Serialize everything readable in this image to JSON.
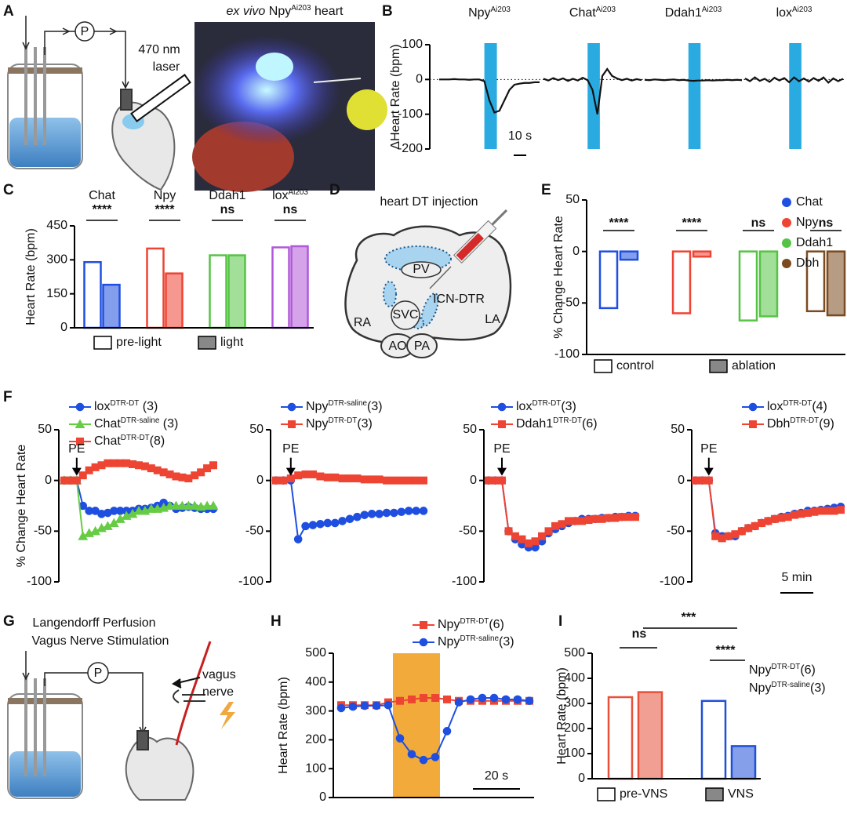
{
  "panel_labels": [
    "A",
    "B",
    "C",
    "D",
    "E",
    "F",
    "G",
    "H",
    "I"
  ],
  "panel_a": {
    "pump": "P",
    "laser_line1": "470 nm",
    "laser_line2": "laser",
    "photo_title": {
      "pre": "ex vivo",
      "text": " Npy",
      "sup": "Ai203",
      "after": " heart"
    }
  },
  "panel_d": {
    "title": "heart DT injection",
    "labels": [
      "PV",
      "ICN-DTR",
      "SVC",
      "RA",
      "LA",
      "AO",
      "PA"
    ]
  },
  "panel_g": {
    "title_line1": "Langendorff Perfusion",
    "title_line2": "Vagus Nerve Stimulation",
    "pump": "P",
    "nerve_line1": "vagus",
    "nerve_line2": "nerve"
  },
  "chart_data": [
    {
      "type": "trace",
      "ylabel": "ΔHeart Rate (bpm)",
      "ylim": [
        -200,
        100
      ],
      "yticks": [
        -200,
        -100,
        0,
        100
      ],
      "xlim": [
        0,
        80
      ],
      "x": [
        0,
        4,
        8,
        12,
        16,
        20,
        24,
        28,
        32,
        36,
        40,
        44,
        48,
        52,
        56,
        60,
        64,
        68,
        72,
        76,
        80
      ],
      "stim": [
        36,
        46
      ],
      "stim_color": "#29abe2",
      "scale_bar": {
        "value": 10,
        "label": "10 s"
      },
      "series": [
        {
          "name": {
            "text": "Npy",
            "sup": "Ai203"
          },
          "color": "#111",
          "values": [
            0,
            0,
            0,
            1,
            0,
            0,
            -1,
            0,
            0,
            -5,
            -60,
            -95,
            -90,
            -60,
            -30,
            -15,
            -12,
            -10,
            -10,
            -8,
            -8
          ]
        },
        {
          "name": {
            "text": "Chat",
            "sup": "Ai203"
          },
          "color": "#111",
          "values": [
            2,
            -3,
            4,
            -2,
            3,
            -4,
            2,
            -3,
            5,
            -2,
            -30,
            -100,
            10,
            30,
            10,
            3,
            -2,
            2,
            -3,
            1,
            -2
          ]
        },
        {
          "name": {
            "text": "Ddah1",
            "sup": "Ai203"
          },
          "color": "#111",
          "values": [
            -1,
            -2,
            0,
            -1,
            -2,
            -1,
            0,
            -2,
            -1,
            -3,
            -4,
            -3,
            -3,
            -2,
            -3,
            -2,
            -2,
            -1,
            -2,
            -1,
            -2
          ]
        },
        {
          "name": {
            "text": "lox",
            "sup": "Ai203"
          },
          "color": "#111",
          "values": [
            3,
            -5,
            6,
            -4,
            2,
            -7,
            5,
            -3,
            4,
            -8,
            6,
            -5,
            3,
            -6,
            4,
            -4,
            6,
            -9,
            3,
            -5,
            2
          ]
        }
      ]
    },
    {
      "type": "paired_bar",
      "ylabel": "Heart Rate (bpm)",
      "ylim": [
        0,
        450
      ],
      "yticks": [
        0,
        150,
        300,
        450
      ],
      "categories": [
        "Chat",
        "Npy",
        "Ddah1",
        {
          "text": "lox",
          "sup": "Ai203"
        }
      ],
      "category_colors": [
        "#1f4fe0",
        "#ee4433",
        "#55c444",
        "#b058d8"
      ],
      "annotations": [
        "****",
        "****",
        "ns",
        "ns"
      ],
      "series": [
        {
          "name": "pre-light",
          "values": [
            290,
            350,
            320,
            355
          ]
        },
        {
          "name": "light",
          "values": [
            190,
            240,
            320,
            360
          ]
        }
      ]
    },
    {
      "type": "paired_bar",
      "ylabel": "% Change Heart Rate",
      "ylim": [
        -100,
        50
      ],
      "yticks": [
        -100,
        -50,
        0,
        50
      ],
      "categories": [
        "Chat",
        "Npy",
        "Ddah1",
        "Dbh"
      ],
      "category_colors": [
        "#1f4fe0",
        "#ee4433",
        "#55c444",
        "#7b4a1f"
      ],
      "annotations": [
        "****",
        "****",
        "ns",
        "ns"
      ],
      "series": [
        {
          "name": "control",
          "values": [
            -55,
            -60,
            -67,
            -58
          ]
        },
        {
          "name": "ablation",
          "values": [
            -8,
            -5,
            -63,
            -62
          ]
        }
      ]
    },
    {
      "type": "line",
      "ylabel": "% Change Heart Rate",
      "ylim": [
        -100,
        50
      ],
      "yticks": [
        -100,
        -50,
        0,
        50
      ],
      "xlim": [
        -2,
        22
      ],
      "x": [
        -2,
        -1,
        0,
        1,
        2,
        3,
        4,
        5,
        6,
        7,
        8,
        9,
        10,
        11,
        12,
        13,
        14,
        15,
        16,
        17,
        18,
        19,
        20,
        21,
        22
      ],
      "pe": {
        "label": "PE",
        "x": 0
      },
      "series": [
        {
          "name": {
            "text": "lox",
            "sup": "DTR-DT",
            "after": " (3)"
          },
          "color": "#1f4fe0",
          "marker": "circle",
          "values": [
            0,
            0,
            0,
            -25,
            -30,
            -30,
            -33,
            -32,
            -30,
            -30,
            -30,
            -30,
            -28,
            -28,
            -27,
            -25,
            -22,
            -25,
            -28,
            -27,
            -26,
            -27,
            -28,
            -28,
            -28
          ]
        },
        {
          "name": {
            "text": "Chat",
            "sup": "DTR-saline",
            "after": " (3)"
          },
          "color": "#66cc44",
          "marker": "triangle",
          "values": [
            0,
            0,
            0,
            -55,
            -52,
            -50,
            -47,
            -45,
            -42,
            -38,
            -35,
            -33,
            -30,
            -30,
            -28,
            -28,
            -27,
            -25,
            -25,
            -25,
            -25,
            -25,
            -26,
            -25,
            -25
          ]
        },
        {
          "name": {
            "text": "Chat",
            "sup": "DTR-DT",
            "after": "(8)"
          },
          "color": "#ee4433",
          "marker": "square",
          "values": [
            0,
            0,
            0,
            5,
            10,
            13,
            15,
            17,
            17,
            17,
            17,
            16,
            15,
            14,
            12,
            10,
            8,
            6,
            4,
            3,
            2,
            5,
            8,
            12,
            15
          ]
        }
      ]
    },
    {
      "type": "line",
      "ylim": [
        -100,
        50
      ],
      "yticks": [
        -100,
        -50,
        0,
        50
      ],
      "xlim": [
        -2,
        18
      ],
      "x": [
        -2,
        -1,
        0,
        1,
        2,
        3,
        4,
        5,
        6,
        7,
        8,
        9,
        10,
        11,
        12,
        13,
        14,
        15,
        16,
        17,
        18
      ],
      "pe": {
        "label": "PE",
        "x": 0
      },
      "series": [
        {
          "name": {
            "text": "Npy",
            "sup": "DTR-saline",
            "after": "(3)"
          },
          "color": "#1f4fe0",
          "marker": "circle",
          "values": [
            0,
            0,
            0,
            -58,
            -45,
            -44,
            -43,
            -42,
            -42,
            -40,
            -38,
            -36,
            -34,
            -33,
            -33,
            -32,
            -32,
            -31,
            -30,
            -30,
            -30
          ]
        },
        {
          "name": {
            "text": "Npy",
            "sup": "DTR-DT",
            "after": "(3)"
          },
          "color": "#ee4433",
          "marker": "square",
          "values": [
            0,
            0,
            2,
            5,
            6,
            6,
            4,
            3,
            3,
            2,
            2,
            2,
            1,
            1,
            1,
            0,
            0,
            0,
            0,
            0,
            0
          ]
        }
      ]
    },
    {
      "type": "line",
      "ylim": [
        -100,
        50
      ],
      "yticks": [
        -100,
        -50,
        0,
        50
      ],
      "xlim": [
        -2,
        20
      ],
      "x": [
        -2,
        -1,
        0,
        1,
        2,
        3,
        4,
        5,
        6,
        7,
        8,
        9,
        10,
        11,
        12,
        13,
        14,
        15,
        16,
        17,
        18,
        19,
        20
      ],
      "pe": {
        "label": "PE",
        "x": 0
      },
      "series": [
        {
          "name": {
            "text": "lox",
            "sup": "DTR-DT",
            "after": "(3)"
          },
          "color": "#1f4fe0",
          "marker": "circle",
          "values": [
            0,
            0,
            0,
            -50,
            -58,
            -63,
            -66,
            -66,
            -60,
            -52,
            -48,
            -45,
            -42,
            -40,
            -38,
            -38,
            -38,
            -37,
            -37,
            -36,
            -36,
            -35,
            -35
          ]
        },
        {
          "name": {
            "text": "Ddah1",
            "sup": "DTR-DT",
            "after": "(6)"
          },
          "color": "#ee4433",
          "marker": "square",
          "values": [
            0,
            0,
            0,
            -50,
            -55,
            -58,
            -62,
            -60,
            -55,
            -50,
            -45,
            -43,
            -40,
            -40,
            -40,
            -39,
            -38,
            -38,
            -37,
            -37,
            -36,
            -36,
            -36
          ]
        }
      ]
    },
    {
      "type": "line",
      "ylim": [
        -100,
        50
      ],
      "yticks": [
        -100,
        -50,
        0,
        50
      ],
      "xlim": [
        -2,
        20
      ],
      "x": [
        -2,
        -1,
        0,
        1,
        2,
        3,
        4,
        5,
        6,
        7,
        8,
        9,
        10,
        11,
        12,
        13,
        14,
        15,
        16,
        17,
        18,
        19,
        20
      ],
      "pe": {
        "label": "PE",
        "x": 0
      },
      "scale_bar": {
        "value": 5,
        "label": "5 min"
      },
      "series": [
        {
          "name": {
            "text": "lox",
            "sup": "DTR-DT",
            "after": "(4)"
          },
          "color": "#1f4fe0",
          "marker": "circle",
          "values": [
            0,
            0,
            0,
            -52,
            -55,
            -55,
            -55,
            -50,
            -47,
            -45,
            -42,
            -40,
            -38,
            -36,
            -35,
            -33,
            -32,
            -30,
            -30,
            -29,
            -28,
            -27,
            -26
          ]
        },
        {
          "name": {
            "text": "Dbh",
            "sup": "DTR-DT",
            "after": "(9)"
          },
          "color": "#ee4433",
          "marker": "square",
          "values": [
            0,
            0,
            0,
            -55,
            -57,
            -55,
            -53,
            -50,
            -47,
            -45,
            -42,
            -40,
            -38,
            -37,
            -36,
            -34,
            -33,
            -32,
            -31,
            -30,
            -30,
            -30,
            -29
          ]
        }
      ]
    },
    {
      "type": "line",
      "ylabel": "Heart Rate (bpm)",
      "ylim": [
        0,
        500
      ],
      "yticks": [
        0,
        100,
        200,
        300,
        400,
        500
      ],
      "xlim": [
        0,
        80
      ],
      "x": [
        0,
        5,
        10,
        15,
        20,
        25,
        30,
        35,
        40,
        45,
        50,
        55,
        60,
        65,
        70,
        75,
        80
      ],
      "stim": [
        22,
        42
      ],
      "stim_color": "#f2ab3a",
      "scale_bar": {
        "value": 20,
        "label": "20 s"
      },
      "series": [
        {
          "name": {
            "text": "Npy",
            "sup": "DTR-DT",
            "after": "(6)"
          },
          "color": "#ee4433",
          "marker": "square",
          "values": [
            320,
            320,
            320,
            320,
            330,
            335,
            340,
            345,
            345,
            340,
            335,
            335,
            335,
            335,
            335,
            335,
            335
          ]
        },
        {
          "name": {
            "text": "Npy",
            "sup": "DTR-saline",
            "after": "(3)"
          },
          "color": "#1f4fe0",
          "marker": "circle",
          "values": [
            310,
            315,
            318,
            318,
            320,
            205,
            150,
            130,
            140,
            230,
            330,
            340,
            345,
            345,
            340,
            340,
            335
          ]
        }
      ]
    },
    {
      "type": "paired_bar",
      "ylabel": "Heart Rate (bpm)",
      "ylim": [
        0,
        500
      ],
      "yticks": [
        0,
        100,
        200,
        300,
        400,
        500
      ],
      "categories": [
        {
          "text": "Npy",
          "sup": "DTR-DT",
          "after": "(6)"
        },
        {
          "text": "Npy",
          "sup": "DTR-saline",
          "after": "(3)"
        }
      ],
      "category_colors": [
        "#e8503a",
        "#2050d8"
      ],
      "annotations": [
        "ns",
        "***",
        "****"
      ],
      "series": [
        {
          "name": "pre-VNS",
          "values": [
            325,
            310
          ]
        },
        {
          "name": "VNS",
          "values": [
            345,
            130
          ]
        }
      ]
    }
  ]
}
